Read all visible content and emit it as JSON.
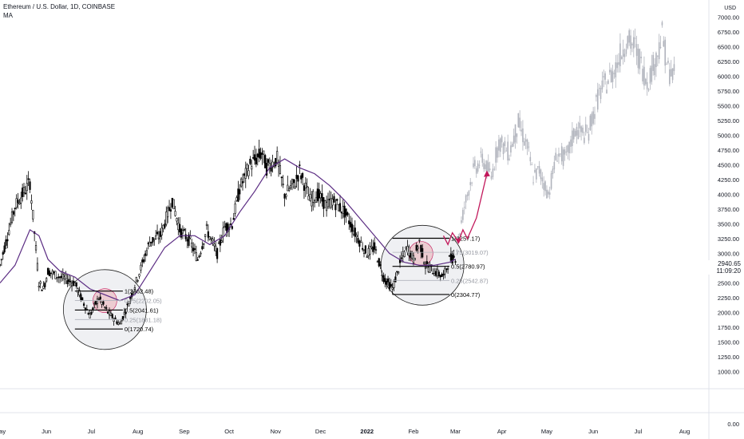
{
  "header": {
    "symbol": "Ethereum / U.S. Dollar, 1D, COINBASE",
    "indicator": "MA"
  },
  "price_scale": {
    "currency": "USD",
    "last_price": "2940.65",
    "countdown": "11:09:20",
    "volume_zero": "0.00"
  },
  "colors": {
    "up": "#000000",
    "down": "#000000",
    "ma": "#5b2c83",
    "projection": "#b0b3bc",
    "arrow": "#c2185b",
    "circle_fill": "#d1d4dc",
    "circle_inner": "#e8a0a8",
    "axis_text": "#131722",
    "grid": "#e0e3eb"
  },
  "chart_data": {
    "type": "candlestick",
    "title": "Ethereum / U.S. Dollar, 1D, COINBASE",
    "ylim": [
      750,
      7250
    ],
    "y_ticks": [
      1000,
      1250,
      1500,
      1750,
      2000,
      2250,
      2500,
      2750,
      3000,
      3250,
      3500,
      3750,
      4000,
      4250,
      4500,
      4750,
      5000,
      5250,
      5500,
      5750,
      6000,
      6250,
      6500,
      6750,
      7000
    ],
    "y_tick_labels": [
      "1000.00",
      "1250.00",
      "1500.00",
      "1750.00",
      "2000.00",
      "2250.00",
      "2500.00",
      "2750.00",
      "3000.00",
      "3250.00",
      "3500.00",
      "3750.00",
      "4000.00",
      "4250.00",
      "4500.00",
      "4750.00",
      "5000.00",
      "5250.00",
      "5500.00",
      "5750.00",
      "6000.00",
      "6250.00",
      "6500.00",
      "6750.00",
      "7000.00"
    ],
    "x_tick_labels": [
      "May",
      "Jun",
      "Jul",
      "Aug",
      "Sep",
      "Oct",
      "Nov",
      "Dec",
      "2022",
      "Feb",
      "Mar",
      "Apr",
      "May",
      "Jun",
      "Jul",
      "Aug"
    ],
    "x_tick_days": [
      0,
      31,
      61,
      92,
      123,
      153,
      184,
      214,
      245,
      276,
      304,
      335,
      365,
      396,
      426,
      457
    ],
    "x_start": "2021-05-01",
    "price_path": {
      "days": [
        0,
        10,
        20,
        26,
        29,
        32,
        40,
        50,
        55,
        60,
        66,
        72,
        80,
        85,
        92,
        100,
        107,
        115,
        120,
        127,
        132,
        138,
        145,
        150,
        155,
        160,
        167,
        175,
        178,
        185,
        190,
        197,
        200,
        207,
        212,
        218,
        222,
        230,
        238,
        245,
        250,
        256,
        262,
        268,
        272,
        276,
        280,
        284,
        290,
        296,
        300,
        304
      ],
      "close": [
        2800,
        3800,
        4200,
        2500,
        2400,
        2700,
        2600,
        2500,
        2200,
        1950,
        2250,
        2000,
        1800,
        2100,
        2600,
        3200,
        3300,
        3900,
        3400,
        3200,
        2900,
        3400,
        3000,
        3450,
        3500,
        4100,
        4500,
        4700,
        4450,
        4600,
        4000,
        4200,
        4400,
        3900,
        4000,
        3800,
        3900,
        3700,
        3300,
        3000,
        3100,
        2600,
        2400,
        2900,
        3100,
        2900,
        3200,
        2800,
        2700,
        2600,
        2900,
        2940
      ]
    },
    "ma_path": {
      "days": [
        0,
        10,
        20,
        26,
        32,
        40,
        50,
        60,
        70,
        80,
        90,
        100,
        110,
        120,
        130,
        140,
        150,
        160,
        170,
        180,
        190,
        200,
        210,
        220,
        230,
        240,
        250,
        260,
        270,
        280,
        290,
        300,
        304
      ],
      "values": [
        2500,
        2800,
        3400,
        3300,
        2900,
        2700,
        2600,
        2400,
        2300,
        2200,
        2300,
        2700,
        3100,
        3300,
        3300,
        3150,
        3300,
        3700,
        4050,
        4450,
        4600,
        4450,
        4350,
        4150,
        3900,
        3600,
        3300,
        3000,
        2850,
        2800,
        2800,
        2850,
        2900
      ]
    },
    "projection_path": {
      "days": [
        305,
        310,
        316,
        322,
        328,
        333,
        340,
        346,
        352,
        356,
        360,
        366,
        372,
        378,
        384,
        392,
        400,
        410,
        418,
        424,
        428,
        432,
        438,
        442,
        446,
        450
      ],
      "close": [
        3100,
        3800,
        4400,
        4600,
        4300,
        4900,
        4700,
        5200,
        4800,
        4300,
        4400,
        4000,
        4700,
        4600,
        5100,
        5000,
        5700,
        6100,
        6600,
        6500,
        6200,
        5900,
        6300,
        6700,
        6100,
        6000
      ]
    },
    "fib_sets": [
      {
        "day_range": [
          50,
          82
        ],
        "levels": [
          {
            "label": "1(2362.48)",
            "value": 2362.48,
            "strong": true
          },
          {
            "label": "0.75(2202.05)",
            "value": 2202.05,
            "strong": false
          },
          {
            "label": "0.5(2041.61)",
            "value": 2041.61,
            "strong": true
          },
          {
            "label": "0.25(1881.18)",
            "value": 1881.18,
            "strong": false
          },
          {
            "label": "0(1720.74)",
            "value": 1720.74,
            "strong": true
          }
        ]
      },
      {
        "day_range": [
          262,
          300
        ],
        "levels": [
          {
            "label": "1(3257.17)",
            "value": 3257.17,
            "strong": true
          },
          {
            "label": "0.75(3019.07)",
            "value": 3019.07,
            "strong": false
          },
          {
            "label": "0.5(2780.97)",
            "value": 2780.97,
            "strong": true
          },
          {
            "label": "0.25(2542.87)",
            "value": 2542.87,
            "strong": false
          },
          {
            "label": "0(2304.77)",
            "value": 2304.77,
            "strong": true
          }
        ]
      }
    ],
    "circles": [
      {
        "center_day": 70,
        "center_value": 2050,
        "inner_day": 70,
        "inner_value": 2200
      },
      {
        "center_day": 282,
        "center_value": 2800,
        "inner_day": 281,
        "inner_value": 3000
      }
    ],
    "arrow_path": {
      "days": [
        296,
        299,
        302,
        306,
        309,
        312,
        318,
        325
      ],
      "values": [
        3300,
        3150,
        3350,
        3200,
        3400,
        3250,
        3600,
        4350
      ]
    },
    "volume_zero": 0
  }
}
